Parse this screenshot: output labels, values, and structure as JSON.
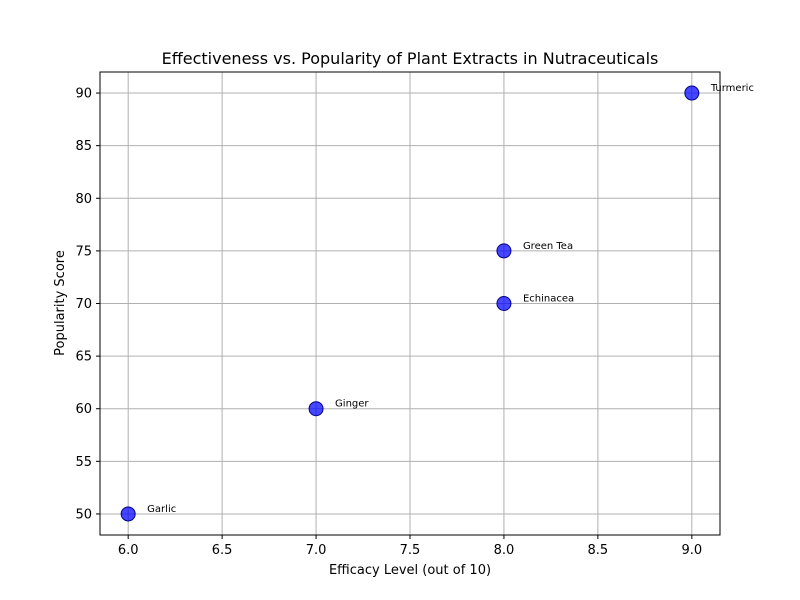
{
  "chart_data": {
    "type": "scatter",
    "title": "Effectiveness vs. Popularity of Plant Extracts in Nutraceuticals",
    "xlabel": "Efficacy Level (out of 10)",
    "ylabel": "Popularity Score",
    "xlim": [
      5.85,
      9.15
    ],
    "ylim": [
      48.0,
      92.0
    ],
    "x_ticks": [
      6.0,
      6.5,
      7.0,
      7.5,
      8.0,
      8.5,
      9.0
    ],
    "x_tick_labels": [
      "6.0",
      "6.5",
      "7.0",
      "7.5",
      "8.0",
      "8.5",
      "9.0"
    ],
    "y_ticks": [
      50,
      55,
      60,
      65,
      70,
      75,
      80,
      85,
      90
    ],
    "y_tick_labels": [
      "50",
      "55",
      "60",
      "65",
      "70",
      "75",
      "80",
      "85",
      "90"
    ],
    "grid": true,
    "marker_color": "#0000ff",
    "grid_color": "#b0b0b0",
    "points": [
      {
        "label": "Turmeric",
        "x": 9.0,
        "y": 90
      },
      {
        "label": "Green Tea",
        "x": 8.0,
        "y": 75
      },
      {
        "label": "Echinacea",
        "x": 8.0,
        "y": 70
      },
      {
        "label": "Ginger",
        "x": 7.0,
        "y": 60
      },
      {
        "label": "Garlic",
        "x": 6.0,
        "y": 50
      }
    ]
  }
}
